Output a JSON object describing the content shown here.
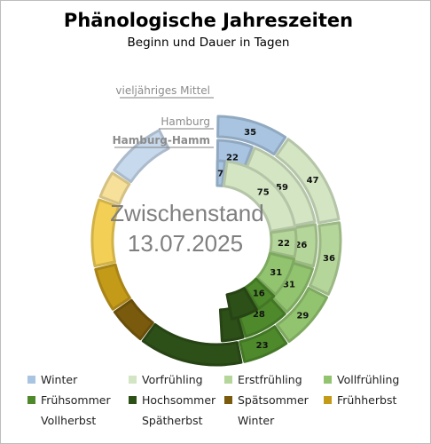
{
  "chart_data": {
    "type": "donut",
    "title": "Phänologische Jahreszeiten",
    "subtitle": "Beginn und Dauer in Tagen",
    "center_text": {
      "label": "Zwischenstand",
      "date": "13.07.2025"
    },
    "seasons": [
      {
        "key": "winter",
        "name": "Winter",
        "color": "#a8c4e0"
      },
      {
        "key": "vorfruehling",
        "name": "Vorfrühling",
        "color": "#d3e5c3"
      },
      {
        "key": "erstfruehling",
        "name": "Erstfrühling",
        "color": "#b5d69b"
      },
      {
        "key": "vollfruehling",
        "name": "Vollfrühling",
        "color": "#92c470"
      },
      {
        "key": "fruehsommer",
        "name": "Frühsommer",
        "color": "#4e8a2c"
      },
      {
        "key": "hochsommer",
        "name": "Hochsommer",
        "color": "#2d4f18"
      },
      {
        "key": "spaetsommer",
        "name": "Spätsommer",
        "color": "#7a5b0d"
      },
      {
        "key": "fruehherbst",
        "name": "Frühherbst",
        "color": "#c49a19"
      },
      {
        "key": "vollherbst",
        "name": "Vollherbst",
        "color": "#f3cf55"
      },
      {
        "key": "spaetherbst",
        "name": "Spätherbst",
        "color": "#f7e09a"
      },
      {
        "key": "winter2",
        "name": "Winter",
        "color": "#c7d9ec"
      }
    ],
    "series": [
      {
        "name": "vieljähriges Mittel",
        "values": [
          35,
          47,
          36,
          29,
          23,
          50,
          19,
          22,
          33,
          14,
          30
        ],
        "labels": [
          "35",
          "47",
          "36",
          "29",
          "23",
          "",
          "",
          "",
          "",
          "",
          ""
        ]
      },
      {
        "name": "Hamburg",
        "values": [
          22,
          59,
          26,
          31,
          28,
          14
        ],
        "labels": [
          "22",
          "59",
          "26",
          "31",
          "28",
          ""
        ]
      },
      {
        "name": "Hamburg-Hamm",
        "values": [
          7,
          75,
          22,
          31,
          16,
          21
        ],
        "labels": [
          "7",
          "75",
          "22",
          "31",
          "16",
          ""
        ]
      }
    ]
  }
}
